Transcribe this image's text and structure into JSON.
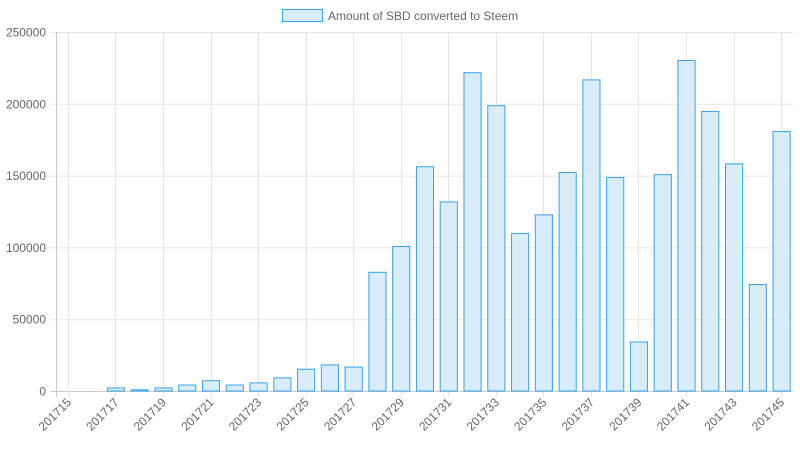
{
  "chart_data": {
    "type": "bar",
    "categories": [
      "201715",
      "201716",
      "201717",
      "201718",
      "201719",
      "201720",
      "201721",
      "201722",
      "201723",
      "201724",
      "201725",
      "201726",
      "201727",
      "201728",
      "201729",
      "201730",
      "201731",
      "201732",
      "201733",
      "201734",
      "201735",
      "201736",
      "201737",
      "201738",
      "201739",
      "201740",
      "201741",
      "201742",
      "201743",
      "201744",
      "201745"
    ],
    "series": [
      {
        "name": "Amount of SBD converted to Steem",
        "values": [
          0,
          300,
          2500,
          1200,
          2500,
          4500,
          7500,
          4500,
          6000,
          9500,
          15500,
          18500,
          17000,
          83000,
          101000,
          156500,
          132000,
          222000,
          199000,
          110000,
          123000,
          152500,
          217000,
          149000,
          34500,
          151000,
          230500,
          195000,
          158500,
          74500,
          181000
        ]
      }
    ],
    "ylim": [
      0,
      250000
    ],
    "yticks": [
      0,
      50000,
      100000,
      150000,
      200000,
      250000
    ],
    "xtick_labels_shown": [
      "201715",
      "201717",
      "201719",
      "201721",
      "201723",
      "201725",
      "201727",
      "201729",
      "201731",
      "201733",
      "201735",
      "201737",
      "201739",
      "201741",
      "201743",
      "201745"
    ],
    "legend_position": "top-center",
    "grid": true,
    "colors": {
      "bar_fill": "#d9ecfa",
      "bar_stroke": "#36a2eb",
      "grid": "#e5e5e5",
      "text": "#666666"
    }
  }
}
